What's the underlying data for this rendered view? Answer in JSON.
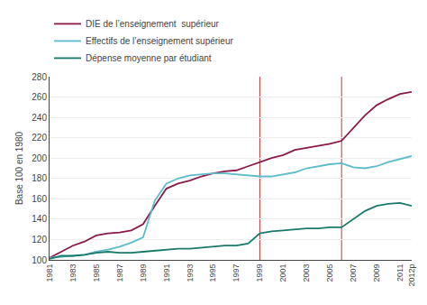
{
  "chart_data": {
    "type": "line",
    "ylabel": "Base 100 en 1980",
    "x": [
      1981,
      1982,
      1983,
      1984,
      1985,
      1986,
      1987,
      1988,
      1989,
      1990,
      1991,
      1992,
      1993,
      1994,
      1995,
      1996,
      1997,
      1998,
      1999,
      2000,
      2001,
      2002,
      2003,
      2004,
      2005,
      2006,
      2007,
      2008,
      2009,
      2010,
      2011,
      2012
    ],
    "series": [
      {
        "name": "DIE de l’enseignement  supérieur",
        "color": "#8b1a4a",
        "values": [
          102,
          108,
          114,
          118,
          124,
          126,
          127,
          129,
          135,
          153,
          170,
          175,
          178,
          182,
          185,
          187,
          188,
          192,
          196,
          200,
          203,
          208,
          210,
          212,
          214,
          217,
          230,
          242,
          252,
          258,
          263,
          265
        ]
      },
      {
        "name": "Effectifs de l’enseignement supérieur",
        "color": "#5bbccc",
        "values": [
          102,
          103,
          104,
          105,
          108,
          110,
          113,
          117,
          122,
          158,
          175,
          180,
          183,
          184,
          185,
          185,
          184,
          183,
          182,
          182,
          184,
          186,
          190,
          192,
          194,
          195,
          191,
          190,
          192,
          196,
          199,
          202
        ]
      },
      {
        "name": "Dépense moyenne par étudiant",
        "color": "#1a7a6a",
        "values": [
          101,
          104,
          104,
          105,
          107,
          108,
          107,
          107,
          108,
          109,
          110,
          111,
          111,
          112,
          113,
          114,
          114,
          116,
          126,
          128,
          129,
          130,
          131,
          131,
          132,
          132,
          140,
          148,
          153,
          155,
          156,
          153
        ]
      }
    ],
    "vlines": {
      "x": [
        1999,
        2006
      ],
      "color": "#cc3333"
    },
    "xlim": [
      1981,
      2012
    ],
    "xticks": [
      1981,
      1983,
      1985,
      1987,
      1989,
      1991,
      1993,
      1995,
      1997,
      1999,
      2001,
      2003,
      2005,
      2007,
      2009,
      2011,
      {
        "value": 2012,
        "label": "2012p"
      }
    ],
    "ylim": [
      100,
      280
    ],
    "yticks": [
      100,
      120,
      140,
      160,
      180,
      200,
      220,
      240,
      260,
      280
    ],
    "grid": "y"
  }
}
